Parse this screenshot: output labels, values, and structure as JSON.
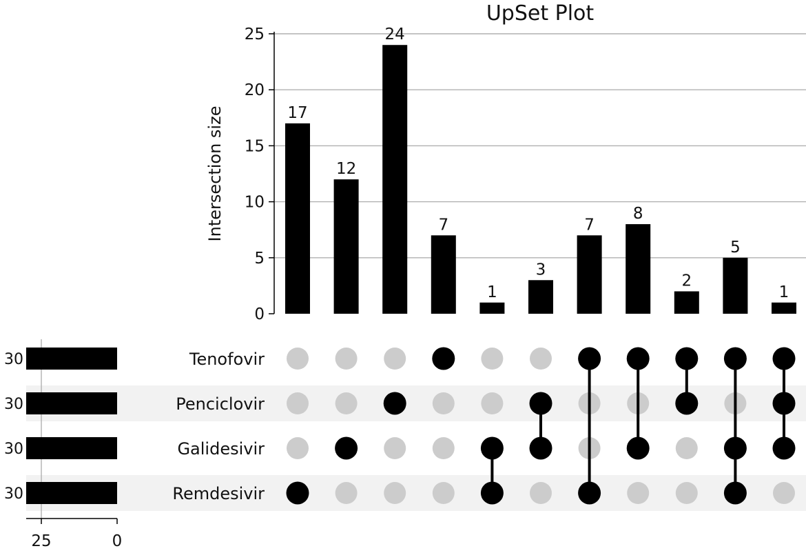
{
  "chart_data": {
    "type": "bar",
    "subtype": "upset",
    "title": "UpSet Plot",
    "ylabel": "Intersection size",
    "ylim": [
      0,
      25
    ],
    "yticks": [
      0,
      5,
      10,
      15,
      20,
      25
    ],
    "grid": true,
    "sets": [
      "Tenofovir",
      "Penciclovir",
      "Galidesivir",
      "Remdesivir"
    ],
    "set_sizes": [
      30,
      30,
      30,
      30
    ],
    "set_size_ticks": [
      25,
      0
    ],
    "intersections": [
      {
        "members": [
          "Remdesivir"
        ],
        "value": 17
      },
      {
        "members": [
          "Galidesivir"
        ],
        "value": 12
      },
      {
        "members": [
          "Penciclovir"
        ],
        "value": 24
      },
      {
        "members": [
          "Tenofovir"
        ],
        "value": 7
      },
      {
        "members": [
          "Galidesivir",
          "Remdesivir"
        ],
        "value": 1
      },
      {
        "members": [
          "Penciclovir",
          "Galidesivir"
        ],
        "value": 3
      },
      {
        "members": [
          "Tenofovir",
          "Remdesivir"
        ],
        "value": 7
      },
      {
        "members": [
          "Tenofovir",
          "Galidesivir"
        ],
        "value": 8
      },
      {
        "members": [
          "Tenofovir",
          "Penciclovir"
        ],
        "value": 2
      },
      {
        "members": [
          "Tenofovir",
          "Galidesivir",
          "Remdesivir"
        ],
        "value": 5
      },
      {
        "members": [
          "Tenofovir",
          "Penciclovir",
          "Galidesivir"
        ],
        "value": 1
      }
    ]
  },
  "colors": {
    "bar": "#000000",
    "dot_active": "#000000",
    "dot_inactive": "#cccccc",
    "grid": "#b0b0b0",
    "stripe": "#f2f2f2"
  }
}
